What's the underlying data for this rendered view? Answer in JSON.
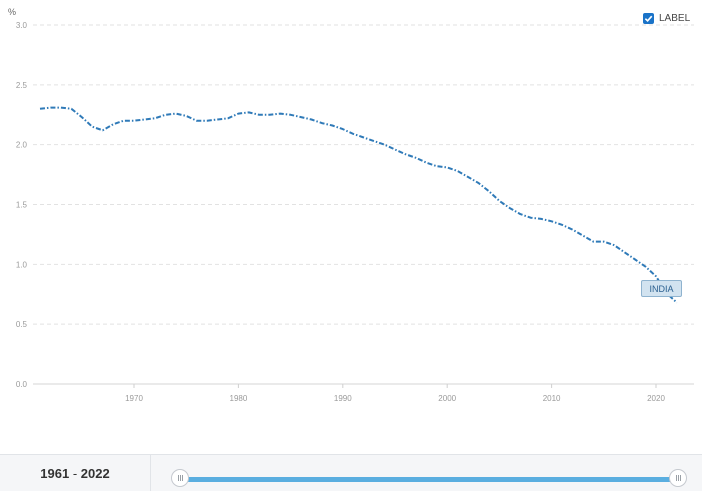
{
  "chart_data": {
    "type": "line",
    "title": "",
    "xlabel": "",
    "ylabel": "%",
    "xlim": [
      1961,
      2022
    ],
    "ylim": [
      0,
      3
    ],
    "y_ticks": [
      "0.0",
      "0.5",
      "1.0",
      "1.5",
      "2.0",
      "2.5",
      "3.0"
    ],
    "x_ticks": [
      "1970",
      "1980",
      "1990",
      "2000",
      "2010",
      "2020"
    ],
    "grid": true,
    "series": [
      {
        "name": "INDIA",
        "color": "#2f7ab8",
        "x": [
          1961,
          1962,
          1963,
          1964,
          1965,
          1966,
          1967,
          1968,
          1969,
          1970,
          1971,
          1972,
          1973,
          1974,
          1975,
          1976,
          1977,
          1978,
          1979,
          1980,
          1981,
          1982,
          1983,
          1984,
          1985,
          1986,
          1987,
          1988,
          1989,
          1990,
          1991,
          1992,
          1993,
          1994,
          1995,
          1996,
          1997,
          1998,
          1999,
          2000,
          2001,
          2002,
          2003,
          2004,
          2005,
          2006,
          2007,
          2008,
          2009,
          2010,
          2011,
          2012,
          2013,
          2014,
          2015,
          2016,
          2017,
          2018,
          2019,
          2020,
          2021,
          2022
        ],
        "y": [
          2.3,
          2.31,
          2.31,
          2.3,
          2.23,
          2.15,
          2.12,
          2.17,
          2.2,
          2.2,
          2.21,
          2.22,
          2.25,
          2.26,
          2.24,
          2.2,
          2.2,
          2.21,
          2.22,
          2.26,
          2.27,
          2.25,
          2.25,
          2.26,
          2.25,
          2.23,
          2.21,
          2.18,
          2.16,
          2.13,
          2.09,
          2.06,
          2.03,
          2.0,
          1.96,
          1.92,
          1.89,
          1.85,
          1.82,
          1.81,
          1.78,
          1.73,
          1.68,
          1.61,
          1.53,
          1.47,
          1.42,
          1.39,
          1.38,
          1.36,
          1.33,
          1.29,
          1.24,
          1.19,
          1.19,
          1.16,
          1.1,
          1.04,
          0.98,
          0.9,
          0.76,
          0.68
        ]
      }
    ]
  },
  "legend": {
    "label": "LABEL",
    "checked": true
  },
  "series_tag": "INDIA",
  "footer": {
    "range_start": "1961",
    "range_sep": " - ",
    "range_end": "2022"
  }
}
